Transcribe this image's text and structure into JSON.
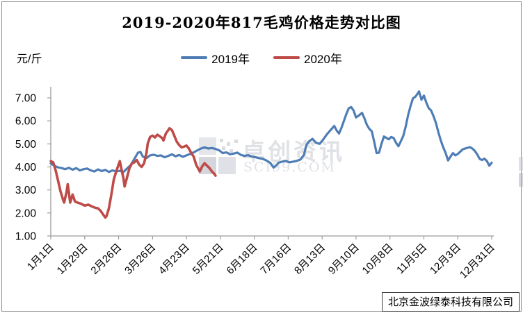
{
  "footer": {
    "company": "北京金波绿泰科技有限公司"
  },
  "watermark": {
    "name": "卓创资讯",
    "site": "SCI99.COM"
  },
  "chart_data": {
    "type": "line",
    "title": "2019-2020年817毛鸡价格走势对比图",
    "y_unit": "元/斤",
    "xlabel": "",
    "ylabel": "元/斤",
    "ylim": [
      1,
      7
    ],
    "grid": false,
    "legend_position": "top-center",
    "axis_color": "#9c9c9c",
    "y_tick_values": [
      7,
      6,
      5,
      4,
      3,
      2,
      1
    ],
    "y_tick_labels": [
      "7.00",
      "6.00",
      "5.00",
      "4.00",
      "3.00",
      "2.00",
      "1.00"
    ],
    "xlim_days": [
      0,
      364
    ],
    "x_tick_days": [
      0,
      28,
      56,
      84,
      112,
      140,
      168,
      196,
      224,
      252,
      280,
      308,
      336,
      364
    ],
    "x_tick_labels": [
      "1月1日",
      "1月29日",
      "2月26日",
      "3月26日",
      "4月23日",
      "5月21日",
      "6月18日",
      "7月16日",
      "8月13日",
      "9月10日",
      "10月8日",
      "11月5日",
      "12月3日",
      "12月31日"
    ],
    "series": [
      {
        "key": "2019",
        "name": "2019年",
        "color": "#4E7DB5",
        "width": 3.2,
        "points": [
          [
            0,
            4.15
          ],
          [
            3,
            4.05
          ],
          [
            6,
            3.98
          ],
          [
            9,
            3.95
          ],
          [
            12,
            3.9
          ],
          [
            15,
            3.96
          ],
          [
            18,
            3.88
          ],
          [
            21,
            3.95
          ],
          [
            24,
            3.85
          ],
          [
            27,
            3.9
          ],
          [
            30,
            3.93
          ],
          [
            33,
            3.85
          ],
          [
            36,
            3.8
          ],
          [
            39,
            3.89
          ],
          [
            42,
            3.82
          ],
          [
            45,
            3.87
          ],
          [
            48,
            3.78
          ],
          [
            51,
            3.85
          ],
          [
            54,
            3.8
          ],
          [
            57,
            3.83
          ],
          [
            60,
            3.78
          ],
          [
            63,
            3.93
          ],
          [
            66,
            4.08
          ],
          [
            69,
            4.35
          ],
          [
            72,
            4.62
          ],
          [
            74,
            4.65
          ],
          [
            76,
            4.45
          ],
          [
            79,
            4.38
          ],
          [
            82,
            4.5
          ],
          [
            85,
            4.53
          ],
          [
            88,
            4.48
          ],
          [
            91,
            4.5
          ],
          [
            94,
            4.42
          ],
          [
            97,
            4.48
          ],
          [
            100,
            4.55
          ],
          [
            103,
            4.46
          ],
          [
            106,
            4.52
          ],
          [
            109,
            4.44
          ],
          [
            112,
            4.5
          ],
          [
            115,
            4.56
          ],
          [
            118,
            4.63
          ],
          [
            121,
            4.72
          ],
          [
            124,
            4.8
          ],
          [
            127,
            4.85
          ],
          [
            130,
            4.8
          ],
          [
            133,
            4.82
          ],
          [
            136,
            4.78
          ],
          [
            139,
            4.72
          ],
          [
            142,
            4.6
          ],
          [
            145,
            4.63
          ],
          [
            148,
            4.55
          ],
          [
            151,
            4.58
          ],
          [
            154,
            4.62
          ],
          [
            157,
            4.52
          ],
          [
            160,
            4.48
          ],
          [
            163,
            4.51
          ],
          [
            166,
            4.45
          ],
          [
            169,
            4.42
          ],
          [
            172,
            4.38
          ],
          [
            175,
            4.35
          ],
          [
            178,
            4.28
          ],
          [
            181,
            4.18
          ],
          [
            184,
            3.97
          ],
          [
            186,
            4.06
          ],
          [
            188,
            4.18
          ],
          [
            191,
            4.23
          ],
          [
            194,
            4.26
          ],
          [
            197,
            4.2
          ],
          [
            200,
            4.23
          ],
          [
            203,
            4.26
          ],
          [
            206,
            4.32
          ],
          [
            209,
            4.52
          ],
          [
            211,
            4.95
          ],
          [
            213,
            5.1
          ],
          [
            216,
            5.22
          ],
          [
            219,
            5.05
          ],
          [
            222,
            5.0
          ],
          [
            225,
            5.2
          ],
          [
            228,
            5.42
          ],
          [
            231,
            5.6
          ],
          [
            234,
            5.78
          ],
          [
            236,
            5.58
          ],
          [
            238,
            5.45
          ],
          [
            240,
            5.7
          ],
          [
            242,
            6.0
          ],
          [
            244,
            6.3
          ],
          [
            246,
            6.55
          ],
          [
            248,
            6.6
          ],
          [
            250,
            6.45
          ],
          [
            252,
            6.15
          ],
          [
            254,
            6.22
          ],
          [
            257,
            6.35
          ],
          [
            259,
            6.1
          ],
          [
            261,
            5.82
          ],
          [
            263,
            5.65
          ],
          [
            265,
            5.55
          ],
          [
            267,
            5.1
          ],
          [
            269,
            4.6
          ],
          [
            271,
            4.62
          ],
          [
            273,
            5.0
          ],
          [
            275,
            5.32
          ],
          [
            277,
            5.26
          ],
          [
            279,
            5.2
          ],
          [
            281,
            5.3
          ],
          [
            283,
            5.26
          ],
          [
            285,
            5.05
          ],
          [
            287,
            4.9
          ],
          [
            289,
            5.12
          ],
          [
            291,
            5.35
          ],
          [
            293,
            5.75
          ],
          [
            295,
            6.25
          ],
          [
            297,
            6.65
          ],
          [
            299,
            6.98
          ],
          [
            301,
            7.05
          ],
          [
            303,
            7.2
          ],
          [
            304,
            7.28
          ],
          [
            306,
            6.92
          ],
          [
            308,
            7.1
          ],
          [
            310,
            6.8
          ],
          [
            312,
            6.55
          ],
          [
            314,
            6.45
          ],
          [
            316,
            6.2
          ],
          [
            318,
            5.9
          ],
          [
            320,
            5.5
          ],
          [
            322,
            5.15
          ],
          [
            324,
            4.85
          ],
          [
            326,
            4.6
          ],
          [
            328,
            4.28
          ],
          [
            330,
            4.45
          ],
          [
            332,
            4.6
          ],
          [
            334,
            4.5
          ],
          [
            336,
            4.56
          ],
          [
            338,
            4.66
          ],
          [
            340,
            4.76
          ],
          [
            342,
            4.8
          ],
          [
            344,
            4.83
          ],
          [
            346,
            4.86
          ],
          [
            348,
            4.8
          ],
          [
            350,
            4.7
          ],
          [
            352,
            4.55
          ],
          [
            354,
            4.35
          ],
          [
            356,
            4.3
          ],
          [
            358,
            4.36
          ],
          [
            360,
            4.26
          ],
          [
            362,
            4.05
          ],
          [
            364,
            4.18
          ]
        ]
      },
      {
        "key": "2020",
        "name": "2020年",
        "color": "#BE4B48",
        "width": 3.6,
        "points": [
          [
            0,
            4.25
          ],
          [
            2,
            4.2
          ],
          [
            4,
            3.85
          ],
          [
            6,
            3.4
          ],
          [
            8,
            2.95
          ],
          [
            10,
            2.6
          ],
          [
            11,
            2.45
          ],
          [
            13,
            2.9
          ],
          [
            14,
            3.25
          ],
          [
            16,
            2.45
          ],
          [
            18,
            2.8
          ],
          [
            20,
            2.5
          ],
          [
            22,
            2.45
          ],
          [
            25,
            2.4
          ],
          [
            28,
            2.32
          ],
          [
            31,
            2.36
          ],
          [
            34,
            2.28
          ],
          [
            37,
            2.22
          ],
          [
            39,
            2.2
          ],
          [
            41,
            2.1
          ],
          [
            43,
            1.95
          ],
          [
            45,
            1.8
          ],
          [
            46,
            1.86
          ],
          [
            48,
            2.2
          ],
          [
            50,
            2.8
          ],
          [
            52,
            3.45
          ],
          [
            54,
            3.8
          ],
          [
            56,
            4.1
          ],
          [
            57,
            4.25
          ],
          [
            58,
            4.0
          ],
          [
            60,
            3.5
          ],
          [
            61,
            3.15
          ],
          [
            63,
            3.55
          ],
          [
            65,
            3.95
          ],
          [
            67,
            4.15
          ],
          [
            69,
            4.2
          ],
          [
            71,
            4.3
          ],
          [
            73,
            4.1
          ],
          [
            75,
            4.0
          ],
          [
            77,
            4.15
          ],
          [
            79,
            4.6
          ],
          [
            80,
            5.0
          ],
          [
            82,
            5.3
          ],
          [
            84,
            5.36
          ],
          [
            86,
            5.28
          ],
          [
            88,
            5.4
          ],
          [
            90,
            5.33
          ],
          [
            92,
            5.25
          ],
          [
            93,
            5.15
          ],
          [
            95,
            5.45
          ],
          [
            97,
            5.6
          ],
          [
            98,
            5.68
          ],
          [
            100,
            5.6
          ],
          [
            102,
            5.35
          ],
          [
            104,
            5.1
          ],
          [
            106,
            4.95
          ],
          [
            108,
            4.85
          ],
          [
            110,
            4.88
          ],
          [
            112,
            4.93
          ],
          [
            114,
            4.8
          ],
          [
            116,
            4.6
          ],
          [
            118,
            4.45
          ],
          [
            120,
            4.1
          ],
          [
            122,
            3.9
          ],
          [
            123,
            3.8
          ],
          [
            125,
            4.02
          ],
          [
            127,
            4.16
          ],
          [
            129,
            4.05
          ],
          [
            131,
            3.95
          ],
          [
            133,
            3.8
          ],
          [
            135,
            3.7
          ],
          [
            136,
            3.62
          ]
        ]
      }
    ]
  }
}
